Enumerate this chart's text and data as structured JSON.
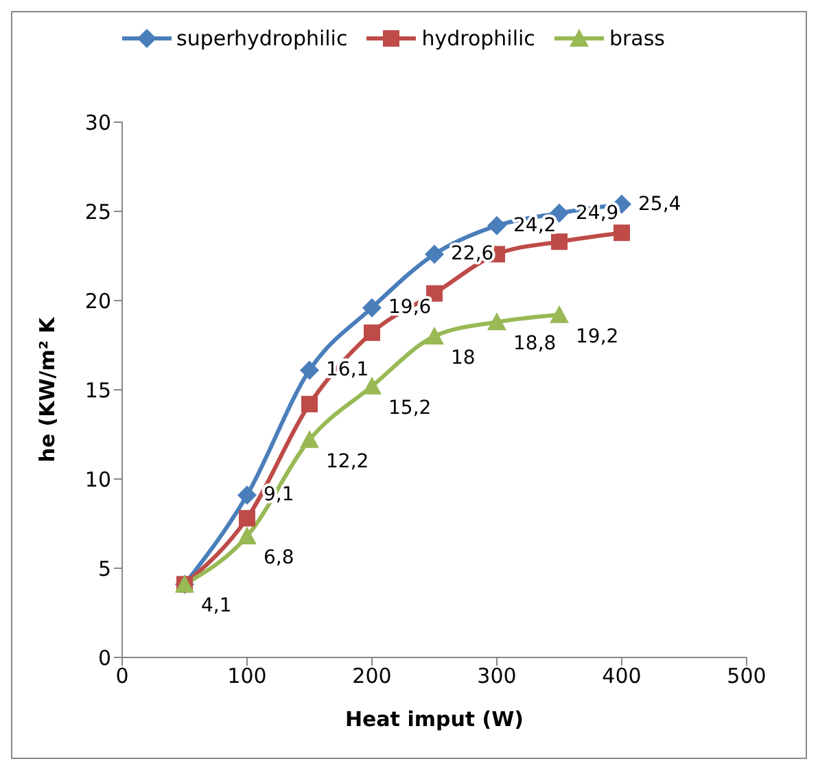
{
  "chart_data": {
    "type": "line",
    "xlabel": "Heat imput (W)",
    "ylabel": "he (KW/m² K",
    "x": [
      50,
      100,
      150,
      200,
      250,
      300,
      350,
      400
    ],
    "xlim": [
      0,
      500
    ],
    "xticks": [
      0,
      100,
      200,
      300,
      400,
      500
    ],
    "ylim": [
      0,
      30
    ],
    "yticks": [
      0,
      5,
      10,
      15,
      20,
      25,
      30
    ],
    "legend": "top",
    "series": [
      {
        "name": "superhydrophilic",
        "color": "#4a7ebb",
        "marker": "diamond",
        "values": [
          4.1,
          9.1,
          16.1,
          19.6,
          22.6,
          24.2,
          24.9,
          25.4
        ],
        "value_labels": [
          null,
          "9,1",
          "16,1",
          "19,6",
          "22,6",
          "24,2",
          "24,9",
          "25,4"
        ]
      },
      {
        "name": "hydrophilic",
        "color": "#be4b48",
        "marker": "square",
        "values": [
          4.1,
          7.8,
          14.2,
          18.2,
          20.4,
          22.6,
          23.3,
          23.8
        ]
      },
      {
        "name": "brass",
        "color": "#98b954",
        "marker": "triangle",
        "x": [
          50,
          100,
          150,
          200,
          250,
          300,
          350
        ],
        "values": [
          4.1,
          6.8,
          12.2,
          15.2,
          18,
          18.8,
          19.2
        ],
        "value_labels": [
          "4,1",
          "6,8",
          "12,2",
          "15,2",
          "18",
          "18,8",
          "19,2"
        ]
      }
    ]
  }
}
